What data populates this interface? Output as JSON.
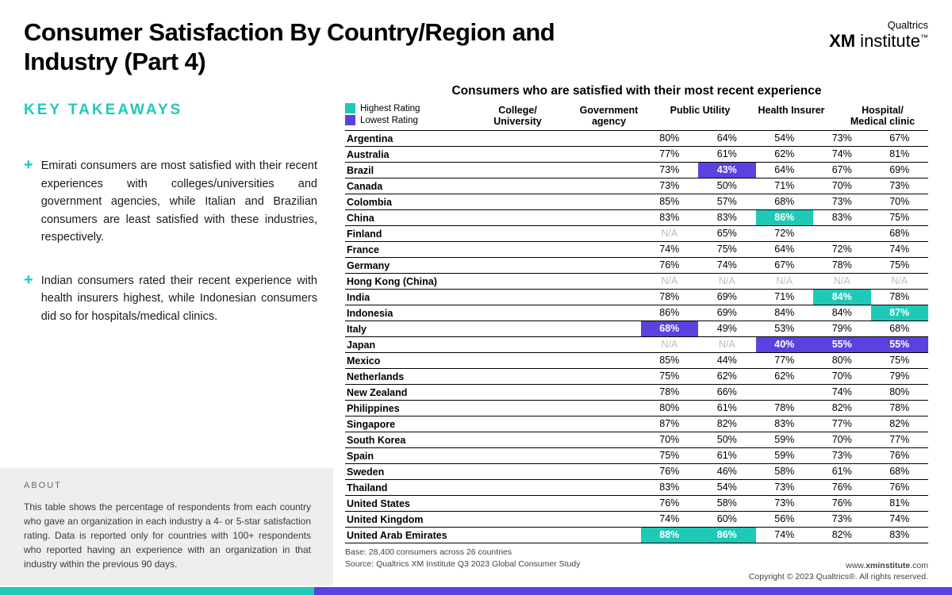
{
  "title": "Consumer Satisfaction By Country/Region and Industry (Part 4)",
  "logo": {
    "small": "Qualtrics",
    "bold": "XM",
    "rest": " institute"
  },
  "keyTakeawaysHeading": "KEY TAKEAWAYS",
  "takeaways": [
    "Emirati consumers are most satisfied with their recent experiences with colleges/universities and government agencies, while Italian and Brazilian consumers are least satisfied with these industries, respectively.",
    "Indian consumers rated their recent experience with health insurers highest, while Indonesian consumers did so for hospitals/medical clinics."
  ],
  "about": {
    "label": "ABOUT",
    "text": "This table shows the percentage of respondents from each country who gave an organization in each industry a 4- or 5-star satisfaction rating. Data is reported only for countries with 100+ respondents who reported having an experience with an organization in that industry within the previous 90 days."
  },
  "tableTitle": "Consumers who are satisfied with their most recent experience",
  "legend": {
    "highLabel": "Highest Rating",
    "lowLabel": "Lowest Rating",
    "highColor": "#1fc9b7",
    "lowColor": "#5b42e0"
  },
  "columns": [
    "College/\nUniversity",
    "Government\nagency",
    "Public Utility",
    "Health Insurer",
    "Hospital/\nMedical clinic"
  ],
  "rows": [
    {
      "c": "Argentina",
      "v": [
        "80%",
        "64%",
        "54%",
        "73%",
        "67%"
      ]
    },
    {
      "c": "Australia",
      "v": [
        "77%",
        "61%",
        "62%",
        "74%",
        "81%"
      ]
    },
    {
      "c": "Brazil",
      "v": [
        "73%",
        {
          "t": "43%",
          "h": "low"
        },
        "64%",
        "67%",
        "69%"
      ]
    },
    {
      "c": "Canada",
      "v": [
        "73%",
        "50%",
        "71%",
        "70%",
        "73%"
      ]
    },
    {
      "c": "Colombia",
      "v": [
        "85%",
        "57%",
        "68%",
        "73%",
        "70%"
      ]
    },
    {
      "c": "China",
      "v": [
        "83%",
        "83%",
        {
          "t": "86%",
          "h": "high"
        },
        "83%",
        "75%"
      ]
    },
    {
      "c": "Finland",
      "v": [
        {
          "t": "N/A",
          "na": true
        },
        "65%",
        "72%",
        "",
        "68%"
      ]
    },
    {
      "c": "France",
      "v": [
        "74%",
        "75%",
        "64%",
        "72%",
        "74%"
      ]
    },
    {
      "c": "Germany",
      "v": [
        "76%",
        "74%",
        "67%",
        "78%",
        "75%"
      ]
    },
    {
      "c": "Hong Kong (China)",
      "v": [
        {
          "t": "N/A",
          "na": true
        },
        {
          "t": "N/A",
          "na": true
        },
        {
          "t": "N/A",
          "na": true
        },
        {
          "t": "N/A",
          "na": true
        },
        {
          "t": "N/A",
          "na": true
        }
      ]
    },
    {
      "c": "India",
      "v": [
        "78%",
        "69%",
        "71%",
        {
          "t": "84%",
          "h": "high"
        },
        "78%"
      ]
    },
    {
      "c": "Indonesia",
      "v": [
        "86%",
        "69%",
        "84%",
        "84%",
        {
          "t": "87%",
          "h": "high"
        }
      ]
    },
    {
      "c": "Italy",
      "v": [
        {
          "t": "68%",
          "h": "low"
        },
        "49%",
        "53%",
        "79%",
        "68%"
      ]
    },
    {
      "c": "Japan",
      "v": [
        {
          "t": "N/A",
          "na": true
        },
        {
          "t": "N/A",
          "na": true
        },
        {
          "t": "40%",
          "h": "low"
        },
        {
          "t": "55%",
          "h": "low"
        },
        {
          "t": "55%",
          "h": "low"
        }
      ]
    },
    {
      "c": "Mexico",
      "v": [
        "85%",
        "44%",
        "77%",
        "80%",
        "75%"
      ]
    },
    {
      "c": "Netherlands",
      "v": [
        "75%",
        "62%",
        "62%",
        "70%",
        "79%"
      ]
    },
    {
      "c": "New Zealand",
      "v": [
        "78%",
        "66%",
        "",
        "74%",
        "80%"
      ]
    },
    {
      "c": "Philippines",
      "v": [
        "80%",
        "61%",
        "78%",
        "82%",
        "78%"
      ]
    },
    {
      "c": "Singapore",
      "v": [
        "87%",
        "82%",
        "83%",
        "77%",
        "82%"
      ]
    },
    {
      "c": "South Korea",
      "v": [
        "70%",
        "50%",
        "59%",
        "70%",
        "77%"
      ]
    },
    {
      "c": "Spain",
      "v": [
        "75%",
        "61%",
        "59%",
        "73%",
        "76%"
      ]
    },
    {
      "c": "Sweden",
      "v": [
        "76%",
        "46%",
        "58%",
        "61%",
        "68%"
      ]
    },
    {
      "c": "Thailand",
      "v": [
        "83%",
        "54%",
        "73%",
        "76%",
        "76%"
      ]
    },
    {
      "c": "United States",
      "v": [
        "76%",
        "58%",
        "73%",
        "76%",
        "81%"
      ]
    },
    {
      "c": "United Kingdom",
      "v": [
        "74%",
        "60%",
        "56%",
        "73%",
        "74%"
      ]
    },
    {
      "c": "United Arab Emirates",
      "v": [
        {
          "t": "88%",
          "h": "high"
        },
        {
          "t": "86%",
          "h": "high"
        },
        "74%",
        "82%",
        "83%"
      ]
    }
  ],
  "footer": {
    "base": "Base: 28,400 consumers across 26 countries",
    "source": "Source: Qualtrics XM Institute Q3 2023 Global Consumer Study",
    "site": "www.xminstitute.com",
    "copyright": "Copyright © 2023 Qualtrics®. All rights reserved."
  }
}
